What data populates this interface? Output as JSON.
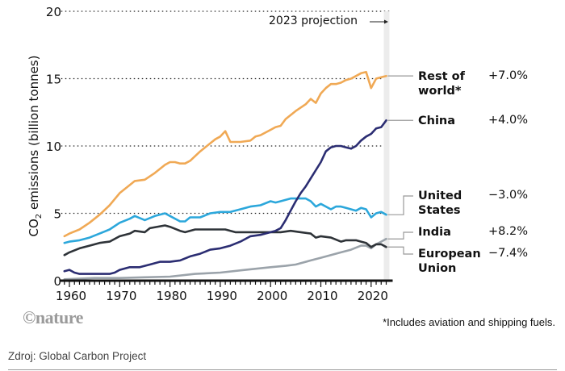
{
  "chart_data": {
    "type": "line",
    "title": "",
    "xlabel": "",
    "ylabel": "CO2 emissions (billion tonnes)",
    "ylabel_main": "CO",
    "ylabel_sub": "2",
    "ylabel_rest": " emissions (billion tonnes)",
    "xlim": [
      1959,
      2023
    ],
    "ylim": [
      0,
      20
    ],
    "yticks": [
      0,
      5,
      10,
      15,
      20
    ],
    "xticks": [
      1960,
      1970,
      1980,
      1990,
      2000,
      2010,
      2020
    ],
    "grid": "horizontal dotted",
    "projection_year": 2023,
    "projection_label": "2023 projection",
    "series": [
      {
        "name": "Rest of world*",
        "name_lines": [
          "Rest of",
          "world*"
        ],
        "change": "+7.0%",
        "color": "#F0A955",
        "x": [
          1959,
          1960,
          1962,
          1964,
          1966,
          1968,
          1970,
          1972,
          1973,
          1975,
          1977,
          1979,
          1980,
          1981,
          1982,
          1983,
          1984,
          1986,
          1988,
          1989,
          1990,
          1991,
          1992,
          1994,
          1996,
          1997,
          1998,
          2000,
          2001,
          2002,
          2003,
          2005,
          2007,
          2008,
          2009,
          2010,
          2011,
          2012,
          2013,
          2014,
          2015,
          2016,
          2017,
          2018,
          2019,
          2020,
          2021,
          2022,
          2023
        ],
        "y": [
          3.3,
          3.5,
          3.8,
          4.3,
          4.9,
          5.6,
          6.5,
          7.1,
          7.4,
          7.5,
          8.0,
          8.6,
          8.8,
          8.8,
          8.7,
          8.7,
          8.9,
          9.6,
          10.2,
          10.5,
          10.7,
          11.1,
          10.3,
          10.3,
          10.4,
          10.7,
          10.8,
          11.2,
          11.4,
          11.5,
          12.0,
          12.6,
          13.1,
          13.5,
          13.2,
          13.9,
          14.3,
          14.6,
          14.6,
          14.7,
          14.9,
          15.0,
          15.2,
          15.4,
          15.5,
          14.3,
          15.0,
          15.1,
          15.2
        ]
      },
      {
        "name": "China",
        "name_lines": [
          "China"
        ],
        "change": "+4.0%",
        "color": "#2B2D72",
        "x": [
          1959,
          1960,
          1961,
          1962,
          1964,
          1966,
          1968,
          1969,
          1970,
          1972,
          1974,
          1975,
          1976,
          1978,
          1980,
          1982,
          1984,
          1986,
          1988,
          1990,
          1992,
          1994,
          1996,
          1998,
          2000,
          2001,
          2002,
          2003,
          2004,
          2005,
          2006,
          2007,
          2008,
          2010,
          2011,
          2012,
          2013,
          2014,
          2015,
          2016,
          2017,
          2018,
          2019,
          2020,
          2021,
          2022,
          2023
        ],
        "y": [
          0.7,
          0.8,
          0.6,
          0.5,
          0.5,
          0.5,
          0.5,
          0.6,
          0.8,
          1.0,
          1.0,
          1.1,
          1.2,
          1.4,
          1.4,
          1.5,
          1.8,
          2.0,
          2.3,
          2.4,
          2.6,
          2.9,
          3.3,
          3.4,
          3.6,
          3.7,
          3.9,
          4.5,
          5.2,
          5.9,
          6.5,
          7.0,
          7.6,
          8.8,
          9.6,
          9.9,
          10.0,
          10.0,
          9.9,
          9.8,
          10.0,
          10.4,
          10.7,
          10.9,
          11.3,
          11.4,
          11.9
        ]
      },
      {
        "name": "United States",
        "name_lines": [
          "United",
          "States"
        ],
        "change": "−3.0%",
        "color": "#2CA7DB",
        "x": [
          1959,
          1960,
          1962,
          1964,
          1966,
          1968,
          1970,
          1972,
          1973,
          1975,
          1977,
          1979,
          1980,
          1982,
          1983,
          1984,
          1986,
          1988,
          1990,
          1992,
          1994,
          1996,
          1998,
          2000,
          2001,
          2002,
          2004,
          2005,
          2007,
          2008,
          2009,
          2010,
          2012,
          2013,
          2014,
          2015,
          2016,
          2017,
          2018,
          2019,
          2020,
          2021,
          2022,
          2023
        ],
        "y": [
          2.8,
          2.9,
          3.0,
          3.2,
          3.5,
          3.8,
          4.3,
          4.6,
          4.8,
          4.5,
          4.8,
          5.0,
          4.8,
          4.4,
          4.4,
          4.7,
          4.7,
          5.0,
          5.1,
          5.1,
          5.3,
          5.5,
          5.6,
          5.9,
          5.8,
          5.9,
          6.1,
          6.1,
          6.1,
          5.9,
          5.5,
          5.7,
          5.3,
          5.5,
          5.5,
          5.4,
          5.3,
          5.2,
          5.4,
          5.3,
          4.7,
          5.0,
          5.1,
          4.9
        ]
      },
      {
        "name": "India",
        "name_lines": [
          "India"
        ],
        "change": "+8.2%",
        "color": "#9BA3AA",
        "x": [
          1959,
          1965,
          1970,
          1975,
          1980,
          1985,
          1990,
          1995,
          2000,
          2003,
          2005,
          2008,
          2010,
          2012,
          2014,
          2016,
          2018,
          2019,
          2020,
          2021,
          2022,
          2023
        ],
        "y": [
          0.1,
          0.2,
          0.2,
          0.25,
          0.3,
          0.5,
          0.6,
          0.8,
          1.0,
          1.1,
          1.2,
          1.5,
          1.7,
          1.9,
          2.1,
          2.3,
          2.6,
          2.6,
          2.4,
          2.7,
          2.9,
          3.1
        ]
      },
      {
        "name": "European Union",
        "name_lines": [
          "European",
          "Union"
        ],
        "change": "−7.4%",
        "color": "#2E3338",
        "x": [
          1959,
          1960,
          1962,
          1964,
          1966,
          1968,
          1970,
          1972,
          1973,
          1975,
          1976,
          1979,
          1980,
          1982,
          1983,
          1985,
          1990,
          1991,
          1993,
          1995,
          2000,
          2002,
          2004,
          2006,
          2008,
          2009,
          2010,
          2012,
          2014,
          2015,
          2017,
          2018,
          2019,
          2020,
          2021,
          2022,
          2023
        ],
        "y": [
          1.9,
          2.1,
          2.4,
          2.6,
          2.8,
          2.9,
          3.3,
          3.5,
          3.7,
          3.6,
          3.9,
          4.1,
          4.0,
          3.7,
          3.6,
          3.8,
          3.8,
          3.8,
          3.6,
          3.6,
          3.6,
          3.6,
          3.7,
          3.6,
          3.5,
          3.2,
          3.3,
          3.2,
          2.9,
          3.0,
          3.0,
          2.9,
          2.8,
          2.5,
          2.7,
          2.7,
          2.5
        ]
      }
    ]
  },
  "branding": {
    "logo": "©nature"
  },
  "footnote": "*Includes aviation and shipping fuels.",
  "source": "Zdroj: Global Carbon Project"
}
